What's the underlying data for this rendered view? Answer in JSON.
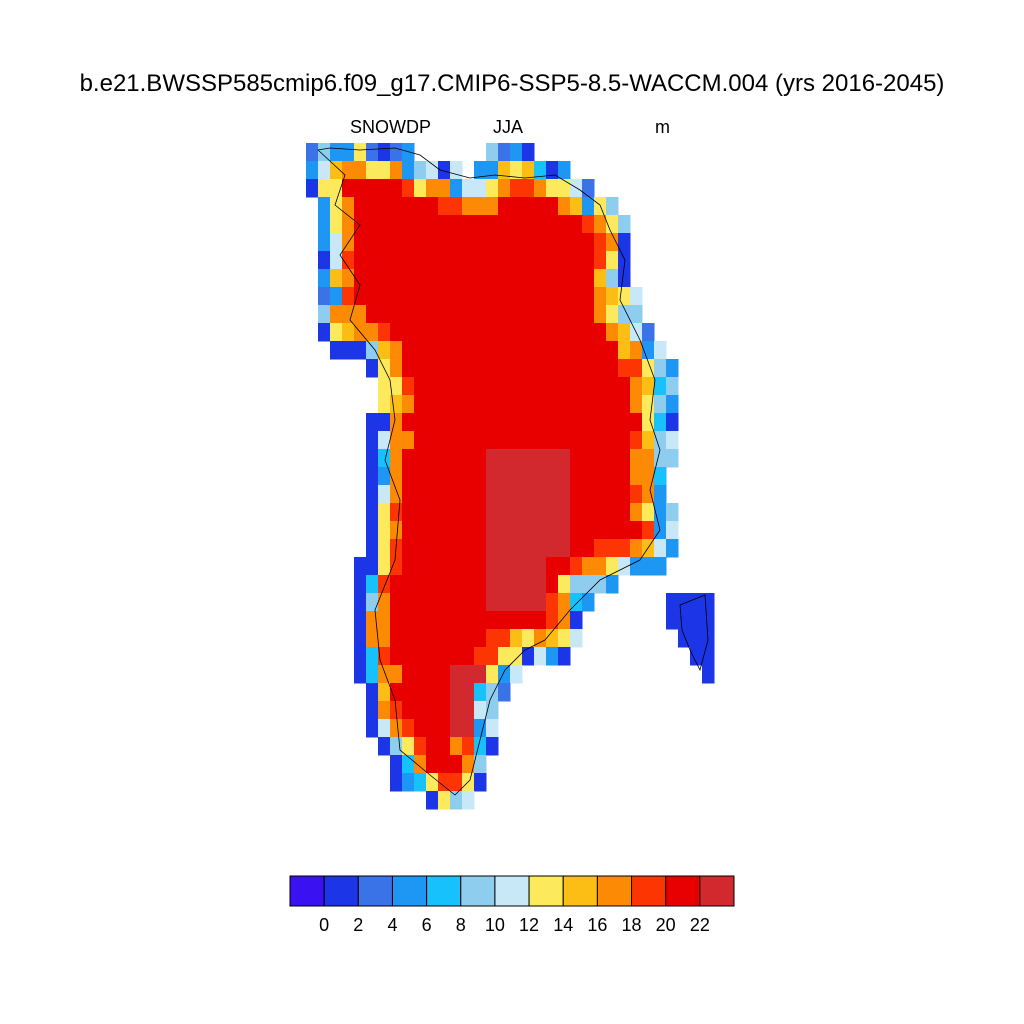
{
  "title": "b.e21.BWSSP585cmip6.f09_g17.CMIP6-SSP5-8.5-WACCM.004 (yrs 2016-2045)",
  "subtitles": {
    "left": "SNOWDP",
    "center": "JJA",
    "right": "m"
  },
  "colors": {
    "palette": [
      "#3a12f2",
      "#1c35e6",
      "#3a72e8",
      "#1e96f4",
      "#17c1fb",
      "#8ecdee",
      "#c9e8f7",
      "#fde95c",
      "#fcbe14",
      "#fd8a05",
      "#fd3502",
      "#e80000",
      "#d2292e"
    ],
    "coastline": "#000000",
    "colorbar_outline": "#000000"
  },
  "colorbar": {
    "levels": [
      0,
      2,
      4,
      6,
      8,
      10,
      12,
      14,
      16,
      18,
      20,
      22
    ],
    "labels": [
      "0",
      "2",
      "4",
      "6",
      "8",
      "10",
      "12",
      "14",
      "16",
      "18",
      "20",
      "22"
    ]
  },
  "chart_data": {
    "type": "heatmap",
    "variable": "SNOWDP",
    "season": "JJA",
    "units": "m",
    "color_levels": [
      0,
      2,
      4,
      6,
      8,
      10,
      12,
      14,
      16,
      18,
      20,
      22
    ],
    "region": "Greenland",
    "description_of_values": "ice-sheet interior ≥20 m (red), margins graded through orange/yellow/cyan to <2 m (blue) on the coast"
  }
}
